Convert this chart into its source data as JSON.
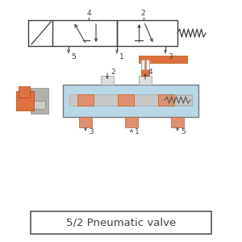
{
  "bg_color": "#ffffff",
  "orange": "#E07040",
  "light_orange": "#E09070",
  "blue": "#B8D8E8",
  "gray": "#A0A0A0",
  "dark": "#404040",
  "title": "5/2 Pneumatic valve",
  "title_fontsize": 9.5,
  "label_fontsize": 6.5
}
